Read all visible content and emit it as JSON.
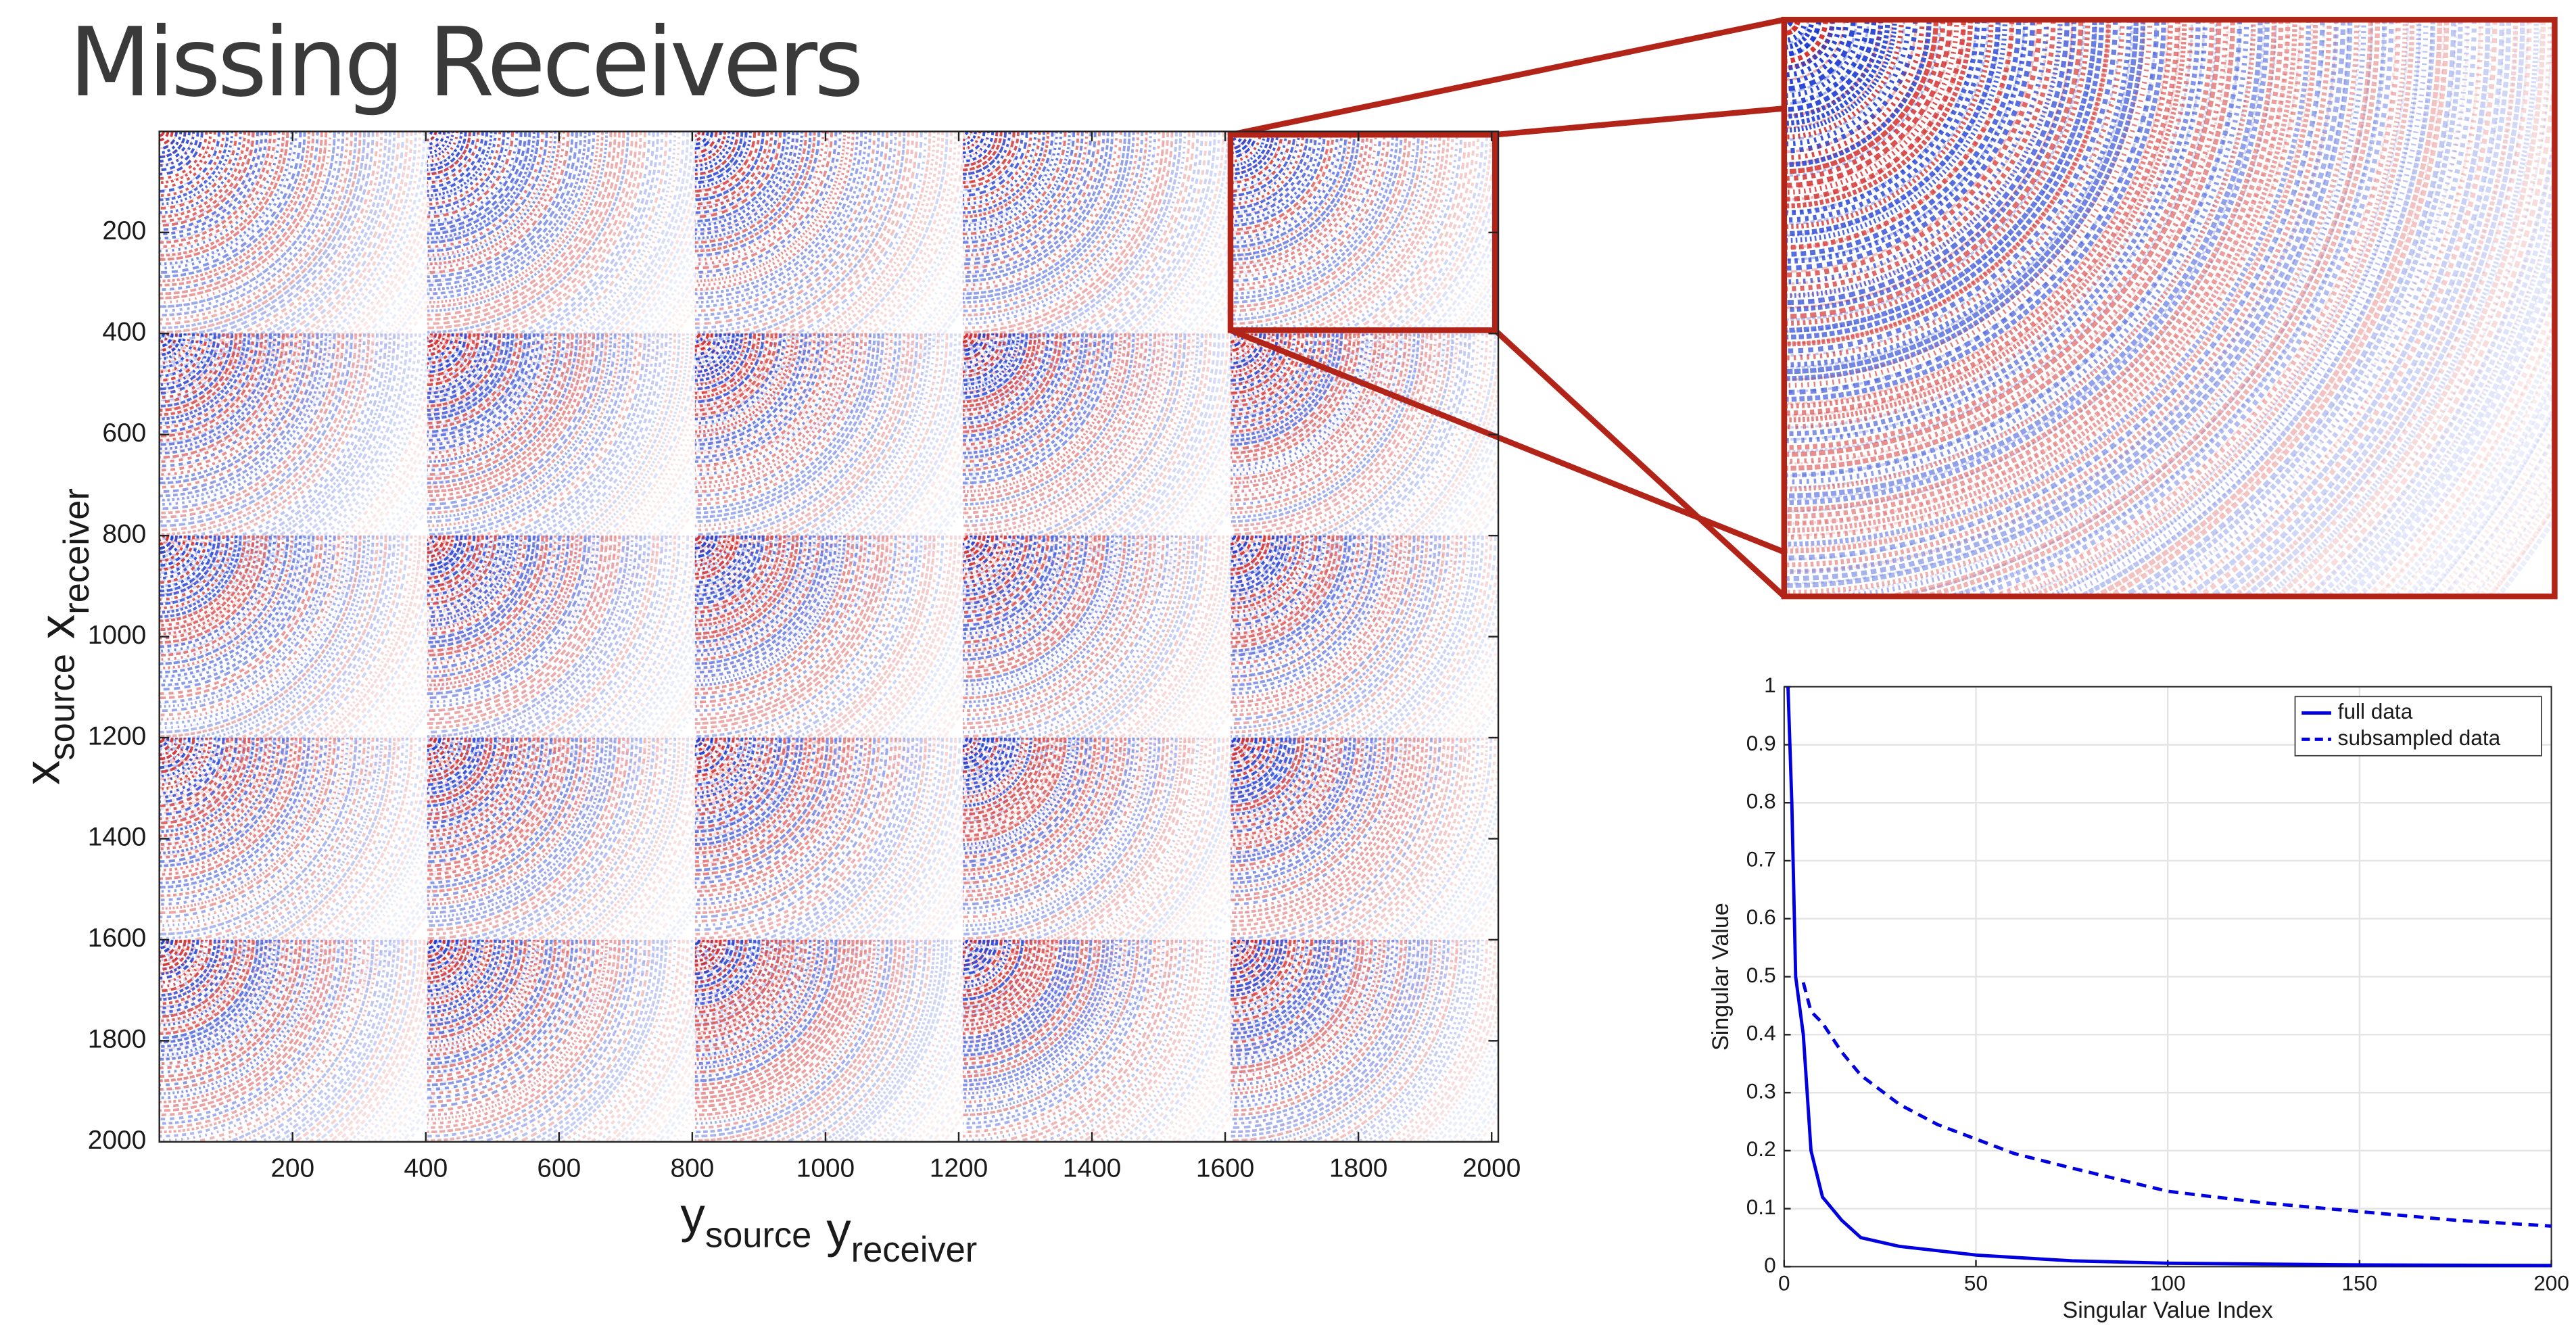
{
  "title": "Missing Receivers",
  "chart_data": [
    {
      "type": "image",
      "xlabel": [
        {
          "base": "y",
          "sub": "source"
        },
        {
          "base": "y",
          "sub": "receiver"
        }
      ],
      "ylabel": [
        {
          "base": "x",
          "sub": "source"
        },
        {
          "base": "x",
          "sub": "receiver"
        }
      ],
      "xlim": [
        0,
        2010
      ],
      "ylim": [
        0,
        2000
      ],
      "y_reversed": true,
      "xticks": [
        200,
        400,
        600,
        800,
        1000,
        1200,
        1400,
        1600,
        1800,
        2000
      ],
      "yticks": [
        200,
        400,
        600,
        800,
        1000,
        1200,
        1400,
        1600,
        1800,
        2000
      ],
      "highlight_color": "#b22418"
    },
    {
      "type": "line",
      "xlabel": "Singular Value Index",
      "ylabel": "Singular Value",
      "xlim": [
        0,
        200
      ],
      "ylim": [
        0,
        1
      ],
      "xticks": [
        0,
        50,
        100,
        150,
        200
      ],
      "yticks": [
        0,
        0.1,
        0.2,
        0.3,
        0.4,
        0.5,
        0.6,
        0.7,
        0.8,
        0.9,
        1
      ],
      "grid": true,
      "legend": "top-right",
      "series": [
        {
          "name": "full data",
          "color": "#0000e0",
          "dash": "solid",
          "x": [
            1,
            2,
            3,
            5,
            7,
            10,
            15,
            20,
            30,
            50,
            75,
            100,
            150,
            200
          ],
          "values": [
            1.0,
            0.8,
            0.5,
            0.4,
            0.2,
            0.12,
            0.08,
            0.05,
            0.035,
            0.02,
            0.01,
            0.006,
            0.003,
            0.002
          ]
        },
        {
          "name": "subsampled data",
          "color": "#0000e0",
          "dash": "dashed",
          "x": [
            5,
            7,
            10,
            15,
            20,
            30,
            40,
            50,
            60,
            75,
            100,
            125,
            150,
            175,
            200
          ],
          "values": [
            0.49,
            0.44,
            0.42,
            0.37,
            0.33,
            0.28,
            0.245,
            0.22,
            0.195,
            0.17,
            0.13,
            0.11,
            0.095,
            0.08,
            0.07
          ]
        }
      ]
    }
  ]
}
